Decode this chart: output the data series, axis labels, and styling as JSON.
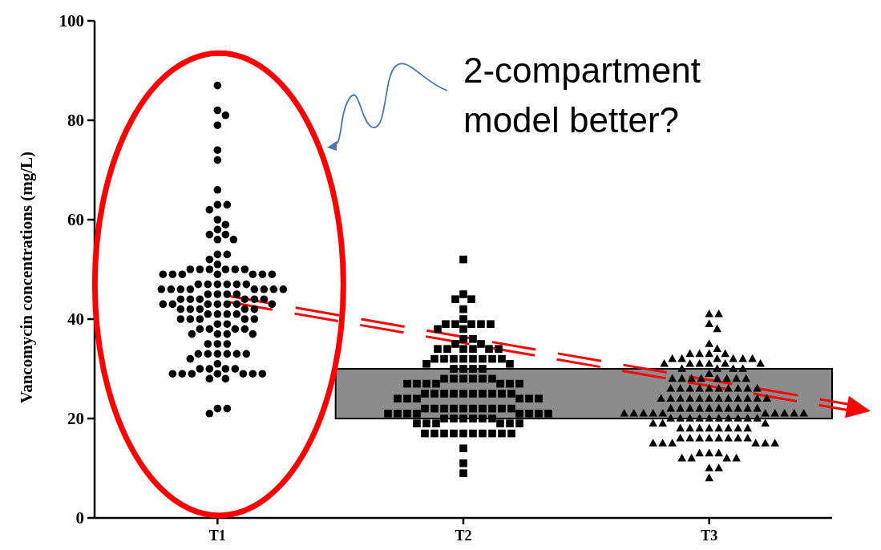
{
  "chart_data": {
    "type": "scatter",
    "ylabel": "Vancomycin concentrations (mg/L)",
    "categories": [
      "T1",
      "T2",
      "T3"
    ],
    "ylim": [
      0,
      100
    ],
    "yticks": [
      0,
      20,
      40,
      60,
      80,
      100
    ],
    "series": [
      {
        "marker": "circle",
        "color": "#000000",
        "x": [
          "T1",
          "T1",
          "T1",
          "T1",
          "T1",
          "T1",
          "T1",
          "T1",
          "T1",
          "T1",
          "T1",
          "T1",
          "T1",
          "T1",
          "T1",
          "T1",
          "T1",
          "T1",
          "T1",
          "T1",
          "T1",
          "T1",
          "T1",
          "T1",
          "T1",
          "T1",
          "T1",
          "T1",
          "T1",
          "T1",
          "T1",
          "T1",
          "T1",
          "T1",
          "T1",
          "T1",
          "T1",
          "T1",
          "T1",
          "T1",
          "T1",
          "T1",
          "T1",
          "T1",
          "T1",
          "T1",
          "T1",
          "T1",
          "T1",
          "T1",
          "T1",
          "T1",
          "T1",
          "T1",
          "T1",
          "T1",
          "T1",
          "T1",
          "T1",
          "T1",
          "T1",
          "T1",
          "T1",
          "T1",
          "T1",
          "T1",
          "T1",
          "T1",
          "T1",
          "T1",
          "T1",
          "T1",
          "T1",
          "T1",
          "T1",
          "T1",
          "T1",
          "T1",
          "T1",
          "T1",
          "T1",
          "T1",
          "T1",
          "T1",
          "T1",
          "T1",
          "T1",
          "T1",
          "T1",
          "T1",
          "T1",
          "T1",
          "T1",
          "T1",
          "T1",
          "T1",
          "T1",
          "T1",
          "T1",
          "T1",
          "T1",
          "T1",
          "T1",
          "T1",
          "T1",
          "T1",
          "T1",
          "T1",
          "T1",
          "T1",
          "T1",
          "T1",
          "T1",
          "T1",
          "T1",
          "T1"
        ],
        "values": [
          87,
          82,
          81,
          79,
          74,
          72,
          66,
          63,
          63,
          62,
          60,
          59,
          58,
          57,
          57,
          56,
          56,
          53,
          53,
          52,
          51,
          50,
          50,
          50,
          50,
          50,
          50,
          49,
          49,
          49,
          49,
          49,
          49,
          49,
          47,
          47,
          47,
          47,
          47,
          47,
          46,
          46,
          46,
          46,
          46,
          46,
          46,
          46,
          45,
          45,
          45,
          45,
          44,
          44,
          44,
          44,
          44,
          44,
          43,
          43,
          43,
          43,
          43,
          43,
          43,
          42,
          42,
          42,
          42,
          42,
          41,
          41,
          41,
          41,
          40,
          40,
          40,
          40,
          40,
          39,
          39,
          38,
          38,
          38,
          38,
          37,
          37,
          37,
          37,
          35,
          35,
          35,
          33,
          33,
          33,
          33,
          33,
          33,
          32,
          31,
          30,
          30,
          30,
          30,
          29,
          29,
          29,
          29,
          29,
          29,
          29,
          28,
          28,
          22,
          22,
          21
        ]
      },
      {
        "marker": "square",
        "color": "#000000",
        "x": [
          "T2",
          "T2",
          "T2",
          "T2",
          "T2",
          "T2",
          "T2",
          "T2",
          "T2",
          "T2",
          "T2",
          "T2",
          "T2",
          "T2",
          "T2",
          "T2",
          "T2",
          "T2",
          "T2",
          "T2",
          "T2",
          "T2",
          "T2",
          "T2",
          "T2",
          "T2",
          "T2",
          "T2",
          "T2",
          "T2",
          "T2",
          "T2",
          "T2",
          "T2",
          "T2",
          "T2",
          "T2",
          "T2",
          "T2",
          "T2",
          "T2",
          "T2",
          "T2",
          "T2",
          "T2",
          "T2",
          "T2",
          "T2",
          "T2",
          "T2",
          "T2",
          "T2",
          "T2",
          "T2",
          "T2",
          "T2",
          "T2",
          "T2",
          "T2",
          "T2",
          "T2",
          "T2",
          "T2",
          "T2",
          "T2",
          "T2",
          "T2",
          "T2",
          "T2",
          "T2",
          "T2",
          "T2",
          "T2",
          "T2",
          "T2",
          "T2",
          "T2",
          "T2",
          "T2",
          "T2",
          "T2",
          "T2",
          "T2",
          "T2",
          "T2",
          "T2",
          "T2",
          "T2",
          "T2",
          "T2",
          "T2",
          "T2",
          "T2",
          "T2",
          "T2",
          "T2",
          "T2",
          "T2",
          "T2",
          "T2",
          "T2",
          "T2",
          "T2",
          "T2",
          "T2",
          "T2",
          "T2",
          "T2",
          "T2"
        ],
        "values": [
          52,
          45,
          44,
          44,
          42,
          40,
          39,
          39,
          39,
          39,
          39,
          38,
          38,
          36,
          36,
          35,
          35,
          34,
          34,
          34,
          34,
          34,
          34,
          32,
          32,
          32,
          32,
          32,
          32,
          32,
          32,
          31,
          31,
          30,
          30,
          30,
          30,
          28,
          28,
          28,
          28,
          28,
          28,
          27,
          27,
          27,
          27,
          27,
          27,
          27,
          25,
          25,
          25,
          25,
          25,
          25,
          25,
          25,
          25,
          25,
          24,
          24,
          24,
          24,
          24,
          24,
          22,
          22,
          22,
          22,
          22,
          22,
          22,
          22,
          22,
          22,
          21,
          21,
          21,
          21,
          21,
          21,
          21,
          21,
          20,
          20,
          20,
          20,
          20,
          20,
          19,
          19,
          19,
          19,
          19,
          19,
          17,
          17,
          17,
          17,
          17,
          17,
          17,
          17,
          17,
          17,
          14,
          11,
          9
        ]
      },
      {
        "marker": "triangle",
        "color": "#000000",
        "x": [
          "T3",
          "T3",
          "T3",
          "T3",
          "T3",
          "T3",
          "T3",
          "T3",
          "T3",
          "T3",
          "T3",
          "T3",
          "T3",
          "T3",
          "T3",
          "T3",
          "T3",
          "T3",
          "T3",
          "T3",
          "T3",
          "T3",
          "T3",
          "T3",
          "T3",
          "T3",
          "T3",
          "T3",
          "T3",
          "T3",
          "T3",
          "T3",
          "T3",
          "T3",
          "T3",
          "T3",
          "T3",
          "T3",
          "T3",
          "T3",
          "T3",
          "T3",
          "T3",
          "T3",
          "T3",
          "T3",
          "T3",
          "T3",
          "T3",
          "T3",
          "T3",
          "T3",
          "T3",
          "T3",
          "T3",
          "T3",
          "T3",
          "T3",
          "T3",
          "T3",
          "T3",
          "T3",
          "T3",
          "T3",
          "T3",
          "T3",
          "T3",
          "T3",
          "T3",
          "T3",
          "T3",
          "T3",
          "T3",
          "T3",
          "T3",
          "T3",
          "T3",
          "T3",
          "T3",
          "T3",
          "T3",
          "T3",
          "T3",
          "T3",
          "T3",
          "T3",
          "T3",
          "T3",
          "T3",
          "T3",
          "T3",
          "T3",
          "T3",
          "T3",
          "T3",
          "T3",
          "T3",
          "T3",
          "T3",
          "T3",
          "T3",
          "T3",
          "T3",
          "T3",
          "T3",
          "T3",
          "T3",
          "T3",
          "T3",
          "T3",
          "T3",
          "T3",
          "T3",
          "T3",
          "T3",
          "T3",
          "T3",
          "T3",
          "T3",
          "T3",
          "T3",
          "T3"
        ],
        "values": [
          41,
          41,
          39,
          38,
          35,
          34,
          33,
          33,
          33,
          33,
          32,
          32,
          32,
          32,
          32,
          32,
          31,
          31,
          31,
          31,
          31,
          31,
          30,
          30,
          30,
          30,
          29,
          28,
          28,
          28,
          28,
          28,
          28,
          28,
          28,
          26,
          26,
          26,
          26,
          26,
          26,
          26,
          26,
          26,
          26,
          24,
          24,
          24,
          24,
          24,
          24,
          24,
          24,
          24,
          24,
          24,
          24,
          22,
          22,
          22,
          22,
          22,
          22,
          22,
          22,
          22,
          22,
          21,
          21,
          21,
          21,
          21,
          21,
          21,
          21,
          21,
          21,
          20,
          20,
          20,
          20,
          20,
          20,
          20,
          20,
          20,
          20,
          19,
          19,
          19,
          18,
          18,
          18,
          18,
          18,
          18,
          18,
          18,
          16,
          16,
          16,
          16,
          16,
          16,
          16,
          16,
          15,
          15,
          15,
          15,
          15,
          15,
          13,
          13,
          13,
          12,
          12,
          12,
          12,
          10,
          10,
          8
        ]
      }
    ],
    "bands": [
      {
        "axis": "y",
        "from": 20,
        "to": 30,
        "color": "#8c8c8c"
      }
    ],
    "annotations": [
      "2-compartment model better?"
    ]
  }
}
